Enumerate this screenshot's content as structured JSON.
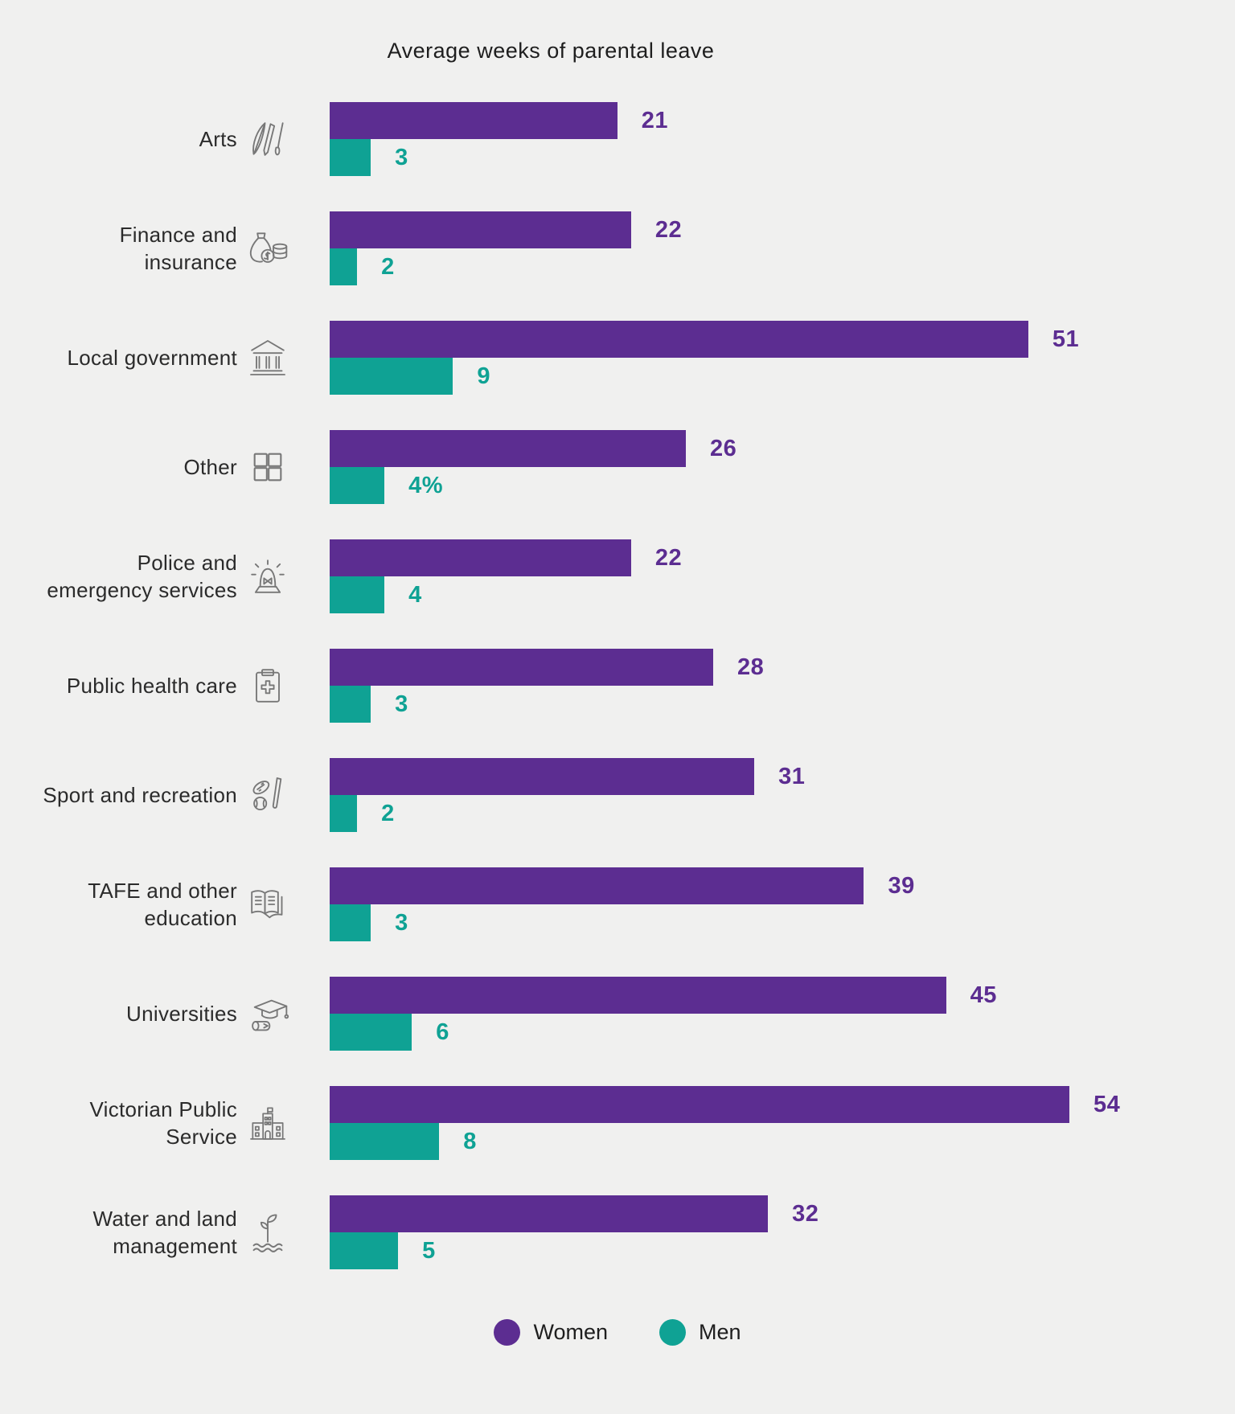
{
  "colors": {
    "women": "#5C2D91",
    "men": "#0FA294",
    "background": "#F0F0EF",
    "label_text": "#2B2B2B",
    "icon_stroke": "#777777"
  },
  "legend": {
    "women_label": "Women",
    "men_label": "Men",
    "position": "bottom"
  },
  "chart_data": {
    "type": "bar",
    "orientation": "horizontal",
    "title": "Average weeks of parental leave",
    "xlabel": "",
    "ylabel": "",
    "xlim": [
      0,
      54
    ],
    "grid": false,
    "legend_position": "bottom",
    "categories": [
      "Arts",
      "Finance and insurance",
      "Local government",
      "Other",
      "Police and emergency services",
      "Public health care",
      "Sport and recreation",
      "TAFE and other education",
      "Universities",
      "Victorian Public Service",
      "Water and land management"
    ],
    "category_icons": [
      "arts-icon",
      "finance-insurance-icon",
      "local-government-icon",
      "other-icon",
      "police-emergency-icon",
      "public-health-icon",
      "sport-recreation-icon",
      "tafe-education-icon",
      "universities-icon",
      "victorian-public-service-icon",
      "water-land-icon"
    ],
    "series": [
      {
        "name": "Women",
        "color": "#5C2D91",
        "values": [
          21,
          22,
          51,
          26,
          22,
          28,
          31,
          39,
          45,
          54,
          32
        ],
        "display_labels": [
          "21",
          "22",
          "51",
          "26",
          "22",
          "28",
          "31",
          "39",
          "45",
          "54",
          "32"
        ]
      },
      {
        "name": "Men",
        "color": "#0FA294",
        "values": [
          3,
          2,
          9,
          4,
          4,
          3,
          2,
          3,
          6,
          8,
          5
        ],
        "display_labels": [
          "3",
          "2",
          "9",
          "4%",
          "4",
          "3",
          "2",
          "3",
          "6",
          "8",
          "5"
        ]
      }
    ]
  }
}
